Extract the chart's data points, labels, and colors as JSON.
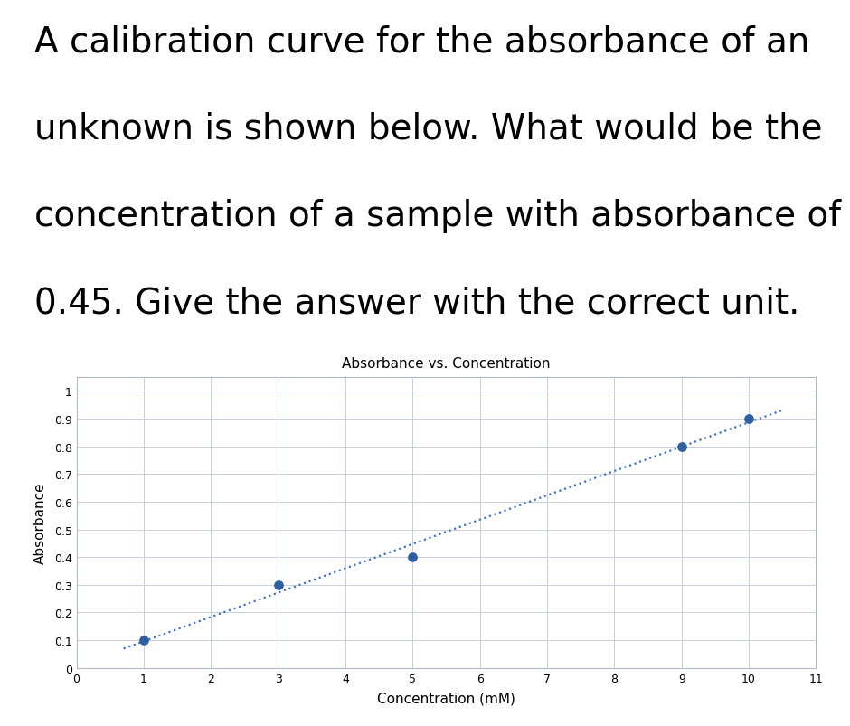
{
  "title": "Absorbance vs. Concentration",
  "xlabel": "Concentration (mM)",
  "ylabel": "Absorbance",
  "x_data": [
    1,
    3,
    5,
    9,
    10
  ],
  "y_data": [
    0.1,
    0.3,
    0.4,
    0.8,
    0.9
  ],
  "xlim": [
    0,
    11
  ],
  "ylim": [
    0,
    1.05
  ],
  "xticks": [
    0,
    1,
    2,
    3,
    4,
    5,
    6,
    7,
    8,
    9,
    10,
    11
  ],
  "yticks": [
    0,
    0.1,
    0.2,
    0.3,
    0.4,
    0.5,
    0.6,
    0.7,
    0.8,
    0.9,
    1
  ],
  "dot_color": "#2e5fa3",
  "line_color": "#4472c4",
  "background_color": "#ffffff",
  "plot_bg_color": "#ffffff",
  "grid_color": "#c8d0dc",
  "title_fontsize": 11,
  "axis_label_fontsize": 11,
  "tick_fontsize": 9,
  "question_lines": [
    "A calibration curve for the absorbance of an",
    "unknown is shown below. What would be the",
    "concentration of a sample with absorbance of",
    "0.45. Give the answer with the correct unit."
  ],
  "question_fontsize": 28,
  "question_font": "DejaVu Sans"
}
